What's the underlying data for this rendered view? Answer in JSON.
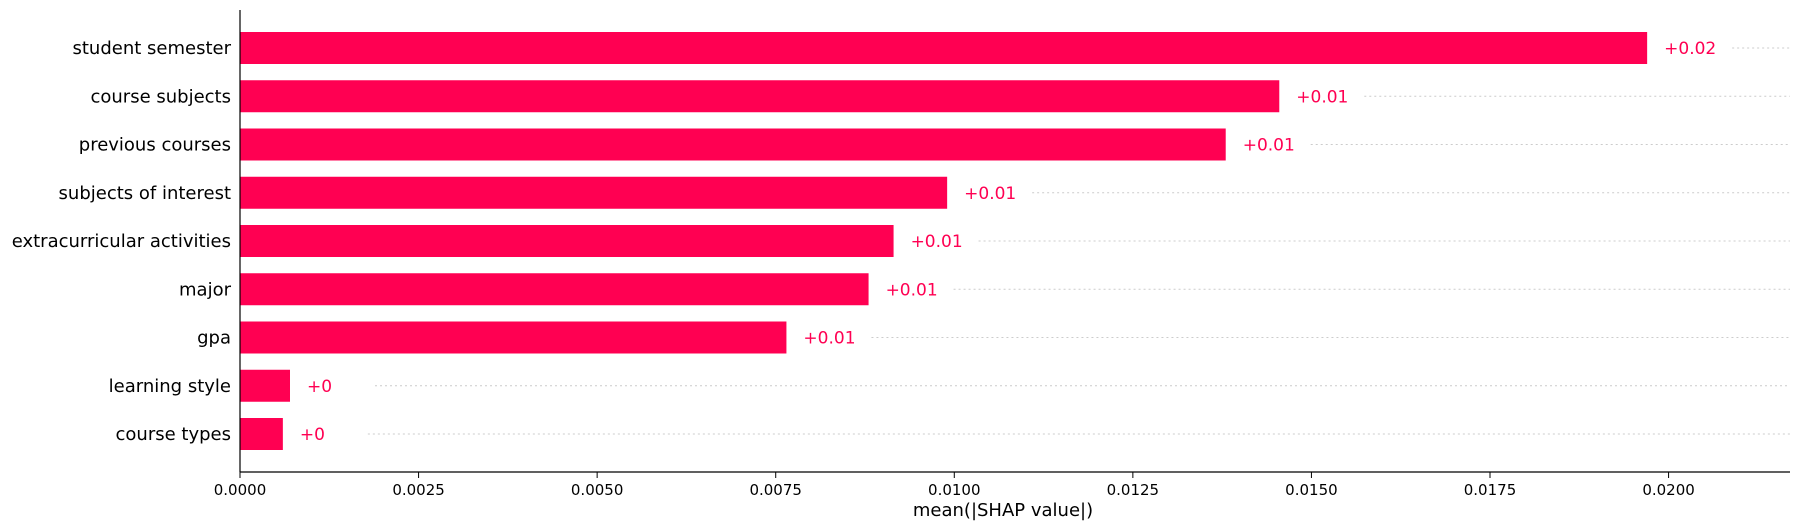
{
  "colors": {
    "bar": "#ff0052",
    "value_text": "#ff0052",
    "axis": "#000000",
    "gridline": "#cccccc"
  },
  "chart_data": {
    "type": "bar",
    "orientation": "horizontal",
    "title": "",
    "xlabel": "mean(|SHAP value|)",
    "ylabel": "",
    "xlim": [
      0,
      0.0217
    ],
    "xticks": [
      0.0,
      0.0025,
      0.005,
      0.0075,
      0.01,
      0.0125,
      0.015,
      0.0175,
      0.02
    ],
    "xtick_labels": [
      "0.0000",
      "0.0025",
      "0.0050",
      "0.0075",
      "0.0100",
      "0.0125",
      "0.0150",
      "0.0175",
      "0.0200"
    ],
    "categories": [
      "student semester",
      "course subjects",
      "previous courses",
      "subjects of interest",
      "extracurricular activities",
      "major",
      "gpa",
      "learning style",
      "course types"
    ],
    "values": [
      0.0197,
      0.01455,
      0.0138,
      0.0099,
      0.00915,
      0.0088,
      0.00765,
      0.0007,
      0.0006
    ],
    "value_labels": [
      "+0.02",
      "+0.01",
      "+0.01",
      "+0.01",
      "+0.01",
      "+0.01",
      "+0.01",
      "+0",
      "+0"
    ],
    "row_guides": "dotted",
    "grid": false
  }
}
